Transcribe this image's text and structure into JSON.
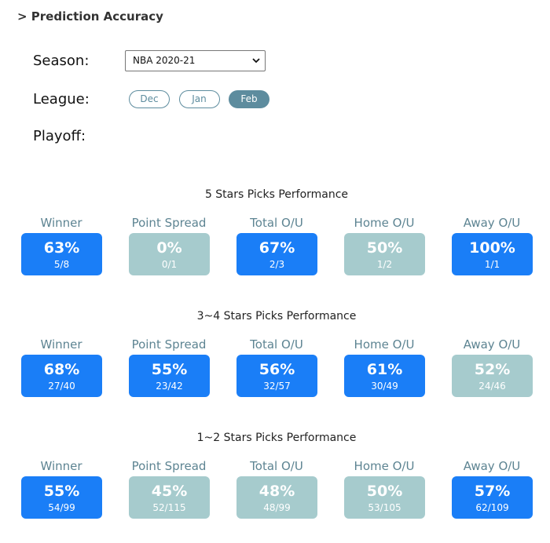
{
  "header": {
    "title": "> Prediction Accuracy"
  },
  "filters": {
    "season": {
      "label": "Season:",
      "value": "NBA 2020-21"
    },
    "league": {
      "label": "League:",
      "options": [
        {
          "text": "Dec",
          "active": false
        },
        {
          "text": "Jan",
          "active": false
        },
        {
          "text": "Feb",
          "active": true
        }
      ]
    },
    "playoff": {
      "label": "Playoff:"
    }
  },
  "sections": [
    {
      "title": "5 Stars Picks Performance",
      "cards": [
        {
          "label": "Winner",
          "percent": "63%",
          "fraction": "5/8",
          "color": "#1a7ef7"
        },
        {
          "label": "Point Spread",
          "percent": "0%",
          "fraction": "0/1",
          "color": "#a6cbcd"
        },
        {
          "label": "Total O/U",
          "percent": "67%",
          "fraction": "2/3",
          "color": "#1a7ef7"
        },
        {
          "label": "Home O/U",
          "percent": "50%",
          "fraction": "1/2",
          "color": "#a6cbcd"
        },
        {
          "label": "Away O/U",
          "percent": "100%",
          "fraction": "1/1",
          "color": "#1a7ef7"
        }
      ]
    },
    {
      "title": "3~4 Stars Picks Performance",
      "cards": [
        {
          "label": "Winner",
          "percent": "68%",
          "fraction": "27/40",
          "color": "#1a7ef7"
        },
        {
          "label": "Point Spread",
          "percent": "55%",
          "fraction": "23/42",
          "color": "#1a7ef7"
        },
        {
          "label": "Total O/U",
          "percent": "56%",
          "fraction": "32/57",
          "color": "#1a7ef7"
        },
        {
          "label": "Home O/U",
          "percent": "61%",
          "fraction": "30/49",
          "color": "#1a7ef7"
        },
        {
          "label": "Away O/U",
          "percent": "52%",
          "fraction": "24/46",
          "color": "#a6cbcd"
        }
      ]
    },
    {
      "title": "1~2 Stars Picks Performance",
      "cards": [
        {
          "label": "Winner",
          "percent": "55%",
          "fraction": "54/99",
          "color": "#1a7ef7"
        },
        {
          "label": "Point Spread",
          "percent": "45%",
          "fraction": "52/115",
          "color": "#a6cbcd"
        },
        {
          "label": "Total O/U",
          "percent": "48%",
          "fraction": "48/99",
          "color": "#a6cbcd"
        },
        {
          "label": "Home O/U",
          "percent": "50%",
          "fraction": "53/105",
          "color": "#a6cbcd"
        },
        {
          "label": "Away O/U",
          "percent": "57%",
          "fraction": "62/109",
          "color": "#1a7ef7"
        }
      ]
    }
  ]
}
